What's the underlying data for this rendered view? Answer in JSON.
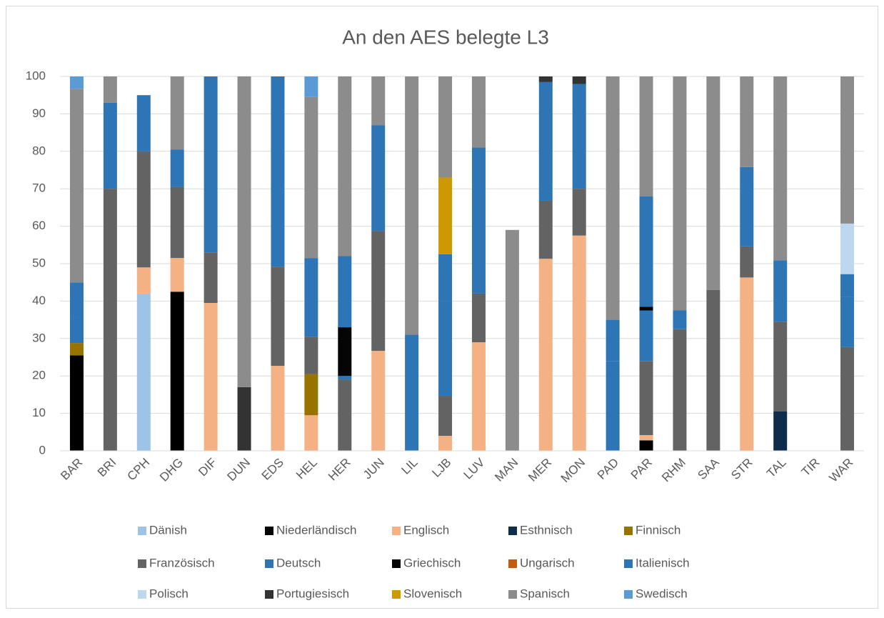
{
  "chart_data": {
    "type": "stacked_bar",
    "title": "An den AES belegte L3",
    "categories": [
      "BAR",
      "BRI",
      "CPH",
      "DHG",
      "DIF",
      "DUN",
      "EDS",
      "HEL",
      "HER",
      "JUN",
      "LIL",
      "LJB",
      "LUV",
      "MAN",
      "MER",
      "MON",
      "PAD",
      "PAR",
      "RHM",
      "SAA",
      "STR",
      "TAL",
      "TIR",
      "WAR"
    ],
    "ylim": [
      0,
      100
    ],
    "yticks": [
      0,
      10,
      20,
      30,
      40,
      50,
      60,
      70,
      80,
      90,
      100
    ],
    "grid": true,
    "legend": "bottom",
    "series": [
      {
        "name": "Dänish",
        "color": "#9dc3e6",
        "values": [
          null,
          null,
          42,
          null,
          null,
          null,
          null,
          null,
          null,
          null,
          null,
          null,
          null,
          null,
          null,
          null,
          null,
          null,
          null,
          null,
          null,
          null,
          null,
          null
        ]
      },
      {
        "name": "Niederländisch",
        "color": "#000000",
        "values": [
          25.5,
          null,
          null,
          42.5,
          null,
          null,
          null,
          null,
          null,
          null,
          null,
          null,
          null,
          null,
          null,
          null,
          null,
          2.8,
          null,
          null,
          null,
          null,
          null,
          null
        ]
      },
      {
        "name": "Englisch",
        "color": "#f4b183",
        "values": [
          null,
          null,
          7,
          9,
          39.5,
          null,
          22.7,
          9.5,
          null,
          26.7,
          null,
          4,
          29,
          null,
          51.3,
          57.5,
          null,
          1.4,
          null,
          null,
          46.3,
          null,
          null,
          null
        ]
      },
      {
        "name": "Esthnisch",
        "color": "#0e2d4a",
        "values": [
          null,
          null,
          null,
          null,
          null,
          null,
          null,
          null,
          null,
          null,
          null,
          null,
          null,
          null,
          null,
          null,
          null,
          null,
          null,
          null,
          null,
          10.5,
          null,
          null
        ]
      },
      {
        "name": "Finnisch",
        "color": "#997300",
        "values": [
          3.3,
          null,
          null,
          null,
          null,
          null,
          null,
          11,
          null,
          null,
          null,
          null,
          null,
          null,
          null,
          null,
          null,
          null,
          null,
          null,
          null,
          null,
          null,
          null
        ]
      },
      {
        "name": "Französisch",
        "color": "#636363",
        "values": [
          null,
          70,
          31,
          19,
          13.5,
          null,
          26.5,
          10,
          19,
          32,
          null,
          10.7,
          13,
          null,
          15.5,
          12.5,
          null,
          19.8,
          32.5,
          43,
          8.3,
          24,
          null,
          27.7
        ]
      },
      {
        "name": "Deutsch",
        "color": "#2e75b6",
        "values": [
          6.7,
          23,
          15,
          10,
          47,
          null,
          50.8,
          21,
          1,
          28.3,
          31,
          25.3,
          39,
          null,
          31.7,
          28,
          24,
          13.5,
          5,
          null,
          21.2,
          16.4,
          null,
          13.5
        ]
      },
      {
        "name": "Griechisch",
        "color": "#050505",
        "values": [
          null,
          null,
          null,
          null,
          null,
          null,
          null,
          null,
          13,
          null,
          null,
          null,
          null,
          null,
          null,
          null,
          null,
          1,
          null,
          null,
          null,
          null,
          null,
          null
        ]
      },
      {
        "name": "Ungarisch",
        "color": "#c55a11",
        "values": [
          null,
          null,
          null,
          null,
          null,
          null,
          null,
          null,
          null,
          null,
          null,
          null,
          null,
          null,
          null,
          null,
          null,
          null,
          null,
          null,
          null,
          null,
          null,
          null
        ]
      },
      {
        "name": "Italienisch",
        "color": "#2e75b6",
        "values": [
          9.5,
          null,
          null,
          null,
          null,
          null,
          null,
          null,
          19,
          null,
          null,
          12.5,
          null,
          null,
          null,
          null,
          11,
          29.5,
          null,
          null,
          null,
          null,
          null,
          6
        ]
      },
      {
        "name": "Polisch",
        "color": "#bdd7ee",
        "values": [
          null,
          null,
          null,
          null,
          null,
          null,
          null,
          null,
          null,
          null,
          null,
          null,
          null,
          null,
          null,
          null,
          null,
          null,
          null,
          null,
          null,
          null,
          null,
          13.5
        ]
      },
      {
        "name": "Portugiesisch",
        "color": "#333333",
        "values": [
          null,
          null,
          null,
          null,
          null,
          17,
          null,
          null,
          null,
          null,
          null,
          null,
          null,
          null,
          1.5,
          2,
          null,
          null,
          null,
          null,
          null,
          null,
          null,
          null
        ]
      },
      {
        "name": "Slovenisch",
        "color": "#cc9900",
        "values": [
          null,
          null,
          null,
          null,
          null,
          null,
          null,
          null,
          null,
          null,
          null,
          20.5,
          null,
          null,
          null,
          null,
          null,
          null,
          null,
          null,
          null,
          null,
          null,
          null
        ]
      },
      {
        "name": "Spanisch",
        "color": "#8c8c8c",
        "values": [
          51.7,
          7,
          null,
          19.5,
          null,
          83,
          null,
          43,
          48,
          13,
          69,
          27,
          19,
          59,
          null,
          null,
          65,
          32,
          62.5,
          57,
          24.2,
          49.1,
          null,
          39.3
        ]
      },
      {
        "name": "Swedisch",
        "color": "#5b9bd5",
        "values": [
          3.3,
          null,
          null,
          null,
          null,
          null,
          null,
          5.5,
          null,
          null,
          null,
          null,
          null,
          null,
          null,
          null,
          null,
          null,
          null,
          null,
          null,
          null,
          null,
          null
        ]
      }
    ]
  }
}
